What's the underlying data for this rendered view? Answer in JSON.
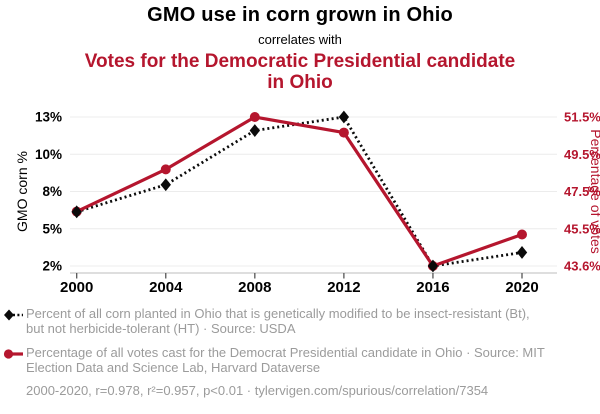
{
  "header": {
    "title": "GMO use in corn grown in Ohio",
    "connector": "correlates with",
    "subtitle": "Votes for the Democratic Presidential candidate in Ohio"
  },
  "colors": {
    "accent_red": "#b5162e",
    "series_black": "#0b0b0b",
    "text_black": "#000000",
    "legend_gray": "#9b9b9b",
    "grid": "#ececec",
    "axis_line": "#c9c9c9",
    "tick_mark": "#555555"
  },
  "chart_data": {
    "type": "line",
    "x": [
      2000,
      2004,
      2008,
      2012,
      2016,
      2020
    ],
    "x_tick_labels": [
      "2000",
      "2004",
      "2008",
      "2012",
      "2016",
      "2020"
    ],
    "series": [
      {
        "name": "GMO corn % (Bt insect-resistant corn planted in Ohio)",
        "axis": "left",
        "style": "dotted",
        "marker": "diamond",
        "values": [
          6,
          8,
          12,
          13,
          2,
          3
        ]
      },
      {
        "name": "Percentage of votes for the Democrat Presidential candidate in Ohio",
        "axis": "right",
        "style": "solid",
        "marker": "circle",
        "values": [
          46.46,
          48.71,
          51.5,
          50.67,
          43.56,
          45.24
        ]
      }
    ],
    "left_axis": {
      "label": "GMO corn %",
      "tick_labels": [
        "13%",
        "10%",
        "8%",
        "5%",
        "2%"
      ],
      "range": [
        2,
        13
      ]
    },
    "right_axis": {
      "label": "Percentage of votes",
      "tick_labels": [
        "51.5%",
        "49.5%",
        "47.5%",
        "45.5%",
        "43.6%"
      ],
      "range": [
        43.56,
        51.5
      ]
    },
    "grid": true,
    "legend_position": "bottom-left"
  },
  "legend": {
    "items": [
      {
        "text": "Percent of all corn planted in Ohio that is genetically modified to be insect-resistant (Bt), but not herbicide-tolerant (HT) · Source: USDA"
      },
      {
        "text": "Percentage of all votes cast for the Democrat Presidential candidate in Ohio · Source: MIT Election Data and Science Lab, Harvard Dataverse"
      }
    ]
  },
  "footer": {
    "text": "2000-2020, r=0.978, r²=0.957, p<0.01 · tylervigen.com/spurious/correlation/7354"
  }
}
